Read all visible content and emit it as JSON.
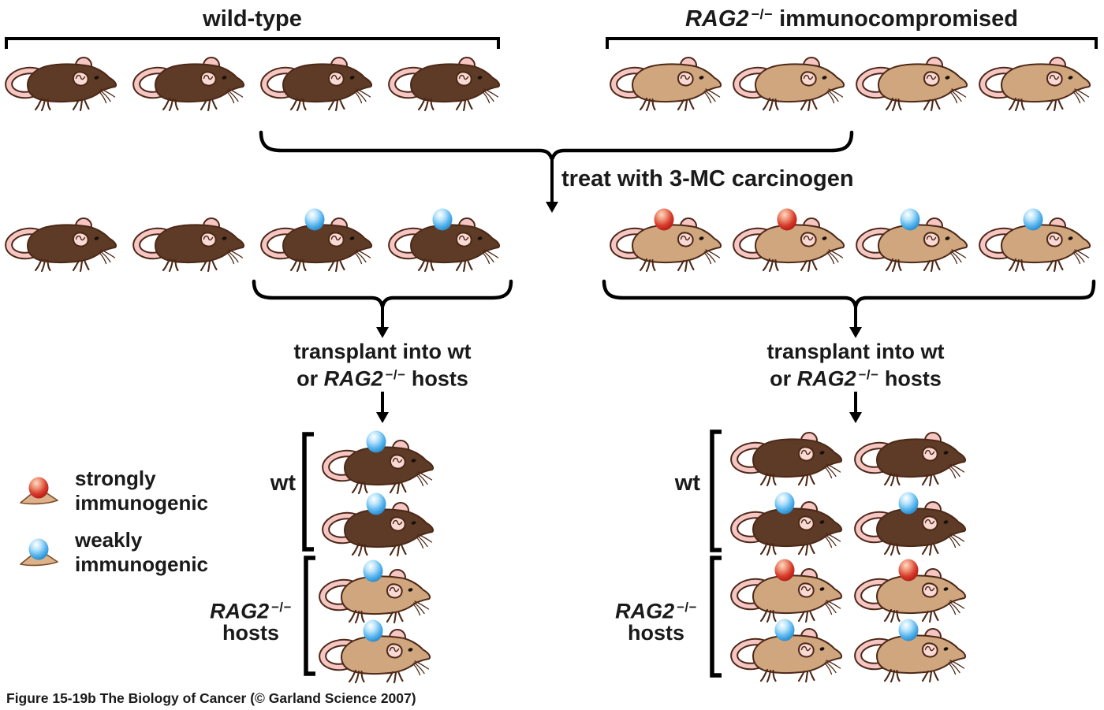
{
  "titles": {
    "left": "wild-type",
    "right": {
      "gene": "RAG2",
      "sup": "−/−",
      "rest": " immunocompromised"
    }
  },
  "flow": {
    "treat_label": "treat with 3-MC carcinogen",
    "transplant": {
      "line1": "transplant into wt",
      "or_pre": "or ",
      "gene": "RAG2",
      "sup": "−/−",
      "hosts_post": " hosts"
    }
  },
  "legend": {
    "items": [
      {
        "tumor": "red",
        "line1": "strongly",
        "line2": "immunogenic"
      },
      {
        "tumor": "blue",
        "line1": "weakly",
        "line2": "immunogenic"
      }
    ]
  },
  "host_labels": {
    "wt": "wt",
    "rag2_gene": "RAG2",
    "rag2_sup": "−/−",
    "hosts": "hosts"
  },
  "caption": "Figure 15-19b  The Biology of Cancer (© Garland Science 2007)",
  "colors": {
    "mouse_bodies": {
      "dark": "#5d3b27",
      "tan": "#cfa67e"
    },
    "pink": "#f5c6c3",
    "pink_light": "#f9d9d4",
    "outline": "#4d2817",
    "tumor_blue": "#45ace9",
    "tumor_red": "#cc241d",
    "legend_skin": "#dbb28b",
    "legend_skin_outline": "#7c4b26",
    "line": "#000000"
  },
  "mice_groups": {
    "top_left": {
      "mice": [
        {
          "body": "dark"
        },
        {
          "body": "dark"
        },
        {
          "body": "dark"
        },
        {
          "body": "dark"
        }
      ]
    },
    "top_right": {
      "mice": [
        {
          "body": "tan"
        },
        {
          "body": "tan"
        },
        {
          "body": "tan"
        },
        {
          "body": "tan"
        }
      ]
    },
    "mid_left": {
      "mice": [
        {
          "body": "dark"
        },
        {
          "body": "dark"
        },
        {
          "body": "dark",
          "tumor": "blue"
        },
        {
          "body": "dark",
          "tumor": "blue"
        }
      ]
    },
    "mid_right": {
      "mice": [
        {
          "body": "tan",
          "tumor": "red"
        },
        {
          "body": "tan",
          "tumor": "red"
        },
        {
          "body": "tan",
          "tumor": "blue"
        },
        {
          "body": "tan",
          "tumor": "blue"
        }
      ]
    },
    "bottom_left_wt": {
      "mice": [
        {
          "body": "dark",
          "tumor": "blue"
        },
        {
          "body": "dark",
          "tumor": "blue"
        }
      ]
    },
    "bottom_left_rag2": {
      "mice": [
        {
          "body": "tan",
          "tumor": "blue"
        },
        {
          "body": "tan",
          "tumor": "blue"
        }
      ]
    },
    "bottom_right_wt": {
      "mice": [
        {
          "body": "dark"
        },
        {
          "body": "dark"
        },
        {
          "body": "dark",
          "tumor": "blue"
        },
        {
          "body": "dark",
          "tumor": "blue"
        }
      ]
    },
    "bottom_right_rag2": {
      "mice": [
        {
          "body": "tan",
          "tumor": "red"
        },
        {
          "body": "tan",
          "tumor": "red"
        },
        {
          "body": "tan",
          "tumor": "blue"
        },
        {
          "body": "tan",
          "tumor": "blue"
        }
      ]
    }
  }
}
